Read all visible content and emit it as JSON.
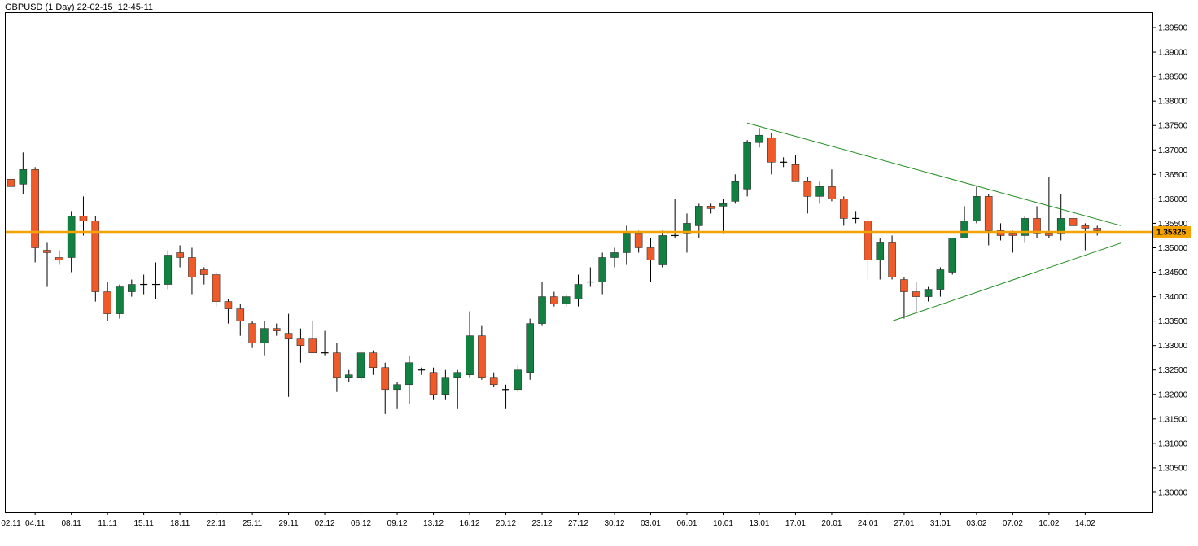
{
  "window": {
    "title": "GBPUSD (1 Day) 22-02-15_12-45-11"
  },
  "colors": {
    "bull": "#118040",
    "bear": "#f05a28",
    "wick": "#000000",
    "level_line": "#f5a300",
    "trendline": "#1e8c1e",
    "badge": "#f5a300"
  },
  "chart_data": {
    "type": "candlestick",
    "title": "GBPUSD (1 Day) 22-02-15_12-45-11",
    "ylim": [
      1.296,
      1.398
    ],
    "y_ticks": [
      "1.39500",
      "1.39000",
      "1.38500",
      "1.38000",
      "1.37500",
      "1.37000",
      "1.36500",
      "1.36000",
      "1.35500",
      "1.35000",
      "1.34500",
      "1.34000",
      "1.33500",
      "1.33000",
      "1.32500",
      "1.32000",
      "1.31500",
      "1.31000",
      "1.30500",
      "1.30000"
    ],
    "x_ticks": [
      {
        "label": "02.11",
        "i": 0
      },
      {
        "label": "04.11",
        "i": 2
      },
      {
        "label": "08.11",
        "i": 5
      },
      {
        "label": "11.11",
        "i": 8
      },
      {
        "label": "15.11",
        "i": 11
      },
      {
        "label": "18.11",
        "i": 14
      },
      {
        "label": "22.11",
        "i": 17
      },
      {
        "label": "25.11",
        "i": 20
      },
      {
        "label": "29.11",
        "i": 23
      },
      {
        "label": "02.12",
        "i": 26
      },
      {
        "label": "06.12",
        "i": 29
      },
      {
        "label": "09.12",
        "i": 32
      },
      {
        "label": "13.12",
        "i": 35
      },
      {
        "label": "16.12",
        "i": 38
      },
      {
        "label": "20.12",
        "i": 41
      },
      {
        "label": "23.12",
        "i": 44
      },
      {
        "label": "27.12",
        "i": 47
      },
      {
        "label": "30.12",
        "i": 50
      },
      {
        "label": "03.01",
        "i": 53
      },
      {
        "label": "06.01",
        "i": 56
      },
      {
        "label": "10.01",
        "i": 59
      },
      {
        "label": "13.01",
        "i": 62
      },
      {
        "label": "17.01",
        "i": 65
      },
      {
        "label": "20.01",
        "i": 68
      },
      {
        "label": "24.01",
        "i": 71
      },
      {
        "label": "27.01",
        "i": 74
      },
      {
        "label": "31.01",
        "i": 77
      },
      {
        "label": "03.02",
        "i": 80
      },
      {
        "label": "07.02",
        "i": 83
      },
      {
        "label": "10.02",
        "i": 86
      },
      {
        "label": "14.02",
        "i": 89
      }
    ],
    "candles": [
      [
        1.364,
        1.366,
        1.3605,
        1.3625
      ],
      [
        1.363,
        1.3695,
        1.361,
        1.366
      ],
      [
        1.366,
        1.3665,
        1.347,
        1.35
      ],
      [
        1.3495,
        1.351,
        1.342,
        1.349
      ],
      [
        1.348,
        1.3495,
        1.3465,
        1.3475
      ],
      [
        1.348,
        1.3575,
        1.345,
        1.3565
      ],
      [
        1.3565,
        1.3605,
        1.3525,
        1.3555
      ],
      [
        1.3555,
        1.3565,
        1.339,
        1.341
      ],
      [
        1.341,
        1.343,
        1.335,
        1.3365
      ],
      [
        1.3365,
        1.3425,
        1.3355,
        1.342
      ],
      [
        1.341,
        1.3435,
        1.34,
        1.3425
      ],
      [
        1.3425,
        1.3445,
        1.3405,
        1.3425
      ],
      [
        1.3425,
        1.347,
        1.3395,
        1.3425
      ],
      [
        1.3425,
        1.3495,
        1.3415,
        1.3485
      ],
      [
        1.349,
        1.3505,
        1.346,
        1.348
      ],
      [
        1.348,
        1.35,
        1.3405,
        1.344
      ],
      [
        1.3455,
        1.346,
        1.3425,
        1.3445
      ],
      [
        1.3445,
        1.345,
        1.338,
        1.339
      ],
      [
        1.339,
        1.3395,
        1.3345,
        1.3375
      ],
      [
        1.3375,
        1.3385,
        1.332,
        1.335
      ],
      [
        1.3345,
        1.335,
        1.3295,
        1.3305
      ],
      [
        1.3305,
        1.335,
        1.328,
        1.3335
      ],
      [
        1.3335,
        1.3345,
        1.332,
        1.333
      ],
      [
        1.3325,
        1.3365,
        1.3195,
        1.3315
      ],
      [
        1.3315,
        1.3335,
        1.3265,
        1.33
      ],
      [
        1.3315,
        1.335,
        1.3285,
        1.3285
      ],
      [
        1.3285,
        1.333,
        1.328,
        1.3285
      ],
      [
        1.3285,
        1.3305,
        1.3205,
        1.3235
      ],
      [
        1.3235,
        1.325,
        1.3225,
        1.324
      ],
      [
        1.3235,
        1.329,
        1.3225,
        1.3285
      ],
      [
        1.3285,
        1.329,
        1.324,
        1.3255
      ],
      [
        1.3255,
        1.3265,
        1.316,
        1.321
      ],
      [
        1.321,
        1.3225,
        1.317,
        1.322
      ],
      [
        1.322,
        1.328,
        1.318,
        1.3265
      ],
      [
        1.325,
        1.3255,
        1.324,
        1.325
      ],
      [
        1.3245,
        1.3255,
        1.319,
        1.32
      ],
      [
        1.32,
        1.325,
        1.319,
        1.3235
      ],
      [
        1.3235,
        1.325,
        1.317,
        1.3245
      ],
      [
        1.324,
        1.337,
        1.3235,
        1.332
      ],
      [
        1.332,
        1.334,
        1.323,
        1.3235
      ],
      [
        1.3235,
        1.3245,
        1.3215,
        1.322
      ],
      [
        1.321,
        1.322,
        1.317,
        1.321
      ],
      [
        1.321,
        1.326,
        1.3205,
        1.325
      ],
      [
        1.3245,
        1.3355,
        1.323,
        1.3345
      ],
      [
        1.3345,
        1.343,
        1.334,
        1.34
      ],
      [
        1.34,
        1.341,
        1.338,
        1.3385
      ],
      [
        1.3385,
        1.3405,
        1.338,
        1.34
      ],
      [
        1.3395,
        1.3445,
        1.338,
        1.3425
      ],
      [
        1.343,
        1.346,
        1.342,
        1.343
      ],
      [
        1.343,
        1.349,
        1.3405,
        1.348
      ],
      [
        1.348,
        1.35,
        1.346,
        1.349
      ],
      [
        1.349,
        1.3545,
        1.3465,
        1.353
      ],
      [
        1.353,
        1.3535,
        1.349,
        1.35
      ],
      [
        1.35,
        1.352,
        1.343,
        1.3475
      ],
      [
        1.3465,
        1.3535,
        1.346,
        1.3525
      ],
      [
        1.3525,
        1.36,
        1.352,
        1.3525
      ],
      [
        1.353,
        1.357,
        1.349,
        1.355
      ],
      [
        1.3545,
        1.359,
        1.352,
        1.3585
      ],
      [
        1.3585,
        1.359,
        1.357,
        1.358
      ],
      [
        1.3585,
        1.36,
        1.353,
        1.359
      ],
      [
        1.3595,
        1.365,
        1.359,
        1.3635
      ],
      [
        1.362,
        1.372,
        1.3605,
        1.3715
      ],
      [
        1.3715,
        1.3745,
        1.3705,
        1.373
      ],
      [
        1.3725,
        1.3735,
        1.365,
        1.3675
      ],
      [
        1.3675,
        1.3685,
        1.3665,
        1.3675
      ],
      [
        1.367,
        1.369,
        1.3635,
        1.3635
      ],
      [
        1.3635,
        1.3645,
        1.357,
        1.3605
      ],
      [
        1.3605,
        1.3635,
        1.359,
        1.3625
      ],
      [
        1.3625,
        1.366,
        1.3595,
        1.36
      ],
      [
        1.36,
        1.3605,
        1.3545,
        1.356
      ],
      [
        1.356,
        1.3575,
        1.355,
        1.356
      ],
      [
        1.3555,
        1.356,
        1.3435,
        1.3475
      ],
      [
        1.3475,
        1.352,
        1.3435,
        1.351
      ],
      [
        1.351,
        1.3525,
        1.3435,
        1.344
      ],
      [
        1.3435,
        1.344,
        1.3355,
        1.341
      ],
      [
        1.341,
        1.343,
        1.337,
        1.34
      ],
      [
        1.34,
        1.342,
        1.339,
        1.3415
      ],
      [
        1.3415,
        1.346,
        1.34,
        1.3455
      ],
      [
        1.345,
        1.352,
        1.3445,
        1.352
      ],
      [
        1.352,
        1.3585,
        1.352,
        1.3555
      ],
      [
        1.3555,
        1.3625,
        1.355,
        1.3605
      ],
      [
        1.3605,
        1.361,
        1.3505,
        1.3535
      ],
      [
        1.3535,
        1.355,
        1.3515,
        1.3525
      ],
      [
        1.353,
        1.3535,
        1.349,
        1.3525
      ],
      [
        1.3525,
        1.3565,
        1.351,
        1.356
      ],
      [
        1.356,
        1.3585,
        1.352,
        1.353
      ],
      [
        1.353,
        1.3645,
        1.352,
        1.3525
      ],
      [
        1.353,
        1.361,
        1.3515,
        1.356
      ],
      [
        1.356,
        1.357,
        1.354,
        1.3545
      ],
      [
        1.3545,
        1.355,
        1.3495,
        1.354
      ],
      [
        1.354,
        1.3545,
        1.3525,
        1.3535
      ]
    ],
    "horizontal_level": {
      "value": 1.35325,
      "label": "1.35325"
    },
    "trendlines": [
      {
        "from": {
          "i": 61.0,
          "y": 1.3755
        },
        "to": {
          "i": 92.0,
          "y": 1.3545
        }
      },
      {
        "from": {
          "i": 73.0,
          "y": 1.335
        },
        "to": {
          "i": 92.0,
          "y": 1.351
        }
      }
    ],
    "grid": false,
    "legend": "none"
  }
}
